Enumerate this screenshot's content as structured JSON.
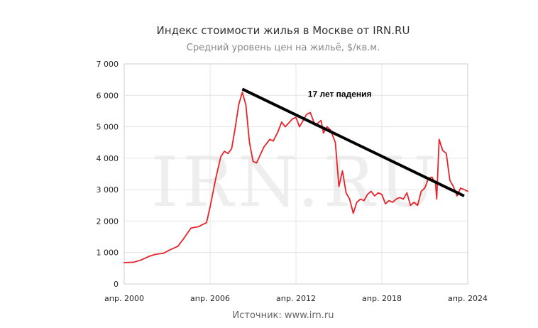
{
  "chart_data": {
    "type": "line",
    "title": "Индекс стоимости жилья в Москве от IRN.RU",
    "subtitle": "Средний уровень цен на жильё, $/кв.м.",
    "source": "Источник: www.irn.ru",
    "watermark": "IRN.RU",
    "ylim": [
      0,
      7000
    ],
    "xlim": [
      "2000-04",
      "2024-04"
    ],
    "y_ticks": [
      {
        "value": 0,
        "label": "0"
      },
      {
        "value": 1000,
        "label": "1 000"
      },
      {
        "value": 2000,
        "label": "2 000"
      },
      {
        "value": 3000,
        "label": "3 000"
      },
      {
        "value": 4000,
        "label": "4 000"
      },
      {
        "value": 5000,
        "label": "5 000"
      },
      {
        "value": 6000,
        "label": "6 000"
      },
      {
        "value": 7000,
        "label": "7 000"
      }
    ],
    "x_ticks": [
      {
        "value": "2000-04",
        "label": "апр. 2000"
      },
      {
        "value": "2006-04",
        "label": "апр. 2006"
      },
      {
        "value": "2012-04",
        "label": "апр. 2012"
      },
      {
        "value": "2018-04",
        "label": "апр. 2018"
      },
      {
        "value": "2024-04",
        "label": "апр. 2024"
      }
    ],
    "grid": true,
    "series": [
      {
        "color": "#e8232a",
        "points": [
          [
            "2000-04",
            680
          ],
          [
            "2000-12",
            690
          ],
          [
            "2001-06",
            760
          ],
          [
            "2002-01",
            880
          ],
          [
            "2002-06",
            940
          ],
          [
            "2003-01",
            980
          ],
          [
            "2003-06",
            1080
          ],
          [
            "2004-01",
            1200
          ],
          [
            "2004-06",
            1450
          ],
          [
            "2004-12",
            1780
          ],
          [
            "2005-06",
            1820
          ],
          [
            "2006-01",
            1950
          ],
          [
            "2006-04",
            2450
          ],
          [
            "2006-09",
            3400
          ],
          [
            "2007-01",
            4050
          ],
          [
            "2007-04",
            4220
          ],
          [
            "2007-07",
            4150
          ],
          [
            "2007-10",
            4300
          ],
          [
            "2008-01",
            4950
          ],
          [
            "2008-04",
            5700
          ],
          [
            "2008-07",
            6100
          ],
          [
            "2008-10",
            5700
          ],
          [
            "2009-01",
            4500
          ],
          [
            "2009-04",
            3900
          ],
          [
            "2009-07",
            3850
          ],
          [
            "2009-10",
            4100
          ],
          [
            "2010-01",
            4350
          ],
          [
            "2010-06",
            4600
          ],
          [
            "2010-09",
            4550
          ],
          [
            "2011-01",
            4850
          ],
          [
            "2011-04",
            5150
          ],
          [
            "2011-07",
            5000
          ],
          [
            "2012-01",
            5250
          ],
          [
            "2012-04",
            5300
          ],
          [
            "2012-07",
            5000
          ],
          [
            "2013-01",
            5400
          ],
          [
            "2013-04",
            5450
          ],
          [
            "2013-08",
            5050
          ],
          [
            "2014-01",
            5200
          ],
          [
            "2014-03",
            4800
          ],
          [
            "2014-06",
            5000
          ],
          [
            "2014-09",
            4900
          ],
          [
            "2015-01",
            4500
          ],
          [
            "2015-04",
            3100
          ],
          [
            "2015-07",
            3600
          ],
          [
            "2015-10",
            2900
          ],
          [
            "2016-01",
            2700
          ],
          [
            "2016-04",
            2250
          ],
          [
            "2016-07",
            2600
          ],
          [
            "2016-10",
            2700
          ],
          [
            "2017-01",
            2650
          ],
          [
            "2017-04",
            2850
          ],
          [
            "2017-07",
            2950
          ],
          [
            "2017-10",
            2800
          ],
          [
            "2018-01",
            2900
          ],
          [
            "2018-04",
            2850
          ],
          [
            "2018-07",
            2550
          ],
          [
            "2018-10",
            2650
          ],
          [
            "2019-01",
            2600
          ],
          [
            "2019-04",
            2700
          ],
          [
            "2019-07",
            2750
          ],
          [
            "2019-10",
            2700
          ],
          [
            "2020-01",
            2900
          ],
          [
            "2020-04",
            2500
          ],
          [
            "2020-07",
            2600
          ],
          [
            "2020-10",
            2500
          ],
          [
            "2021-01",
            2950
          ],
          [
            "2021-04",
            3050
          ],
          [
            "2021-07",
            3350
          ],
          [
            "2021-10",
            3400
          ],
          [
            "2022-01",
            3200
          ],
          [
            "2022-02",
            2700
          ],
          [
            "2022-04",
            4600
          ],
          [
            "2022-07",
            4250
          ],
          [
            "2022-10",
            4150
          ],
          [
            "2023-01",
            3300
          ],
          [
            "2023-04",
            3100
          ],
          [
            "2023-07",
            2800
          ],
          [
            "2023-10",
            3050
          ],
          [
            "2024-01",
            3000
          ],
          [
            "2024-04",
            2950
          ]
        ]
      }
    ],
    "annotations": [
      {
        "text": "17 лет падения",
        "trend_line": [
          [
            "2008-07",
            6200
          ],
          [
            "2024-01",
            2800
          ]
        ],
        "trend_color": "#000000"
      }
    ]
  }
}
